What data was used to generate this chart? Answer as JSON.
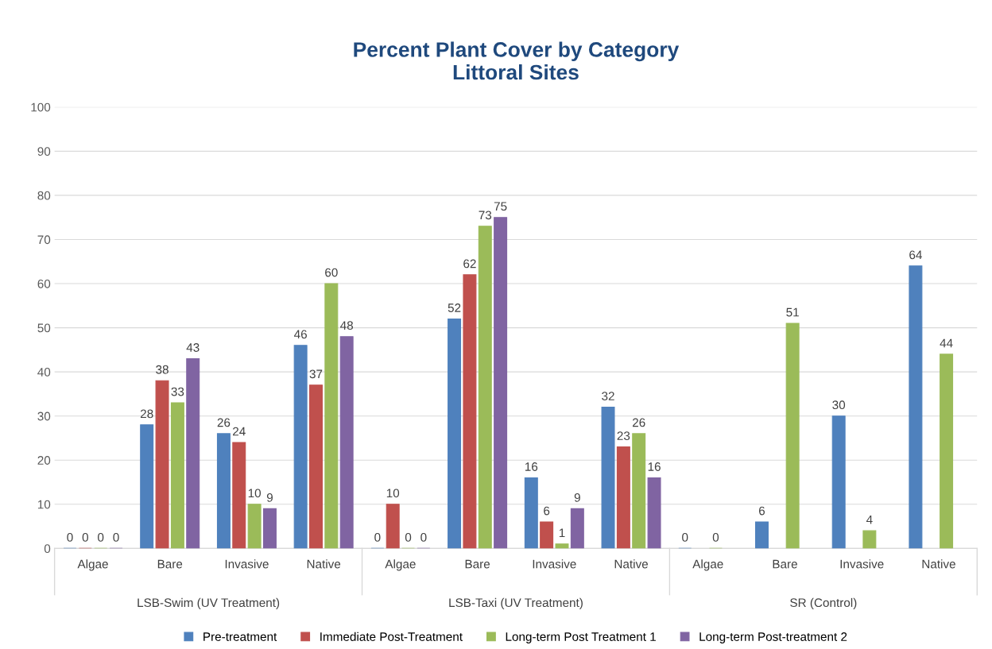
{
  "chart_data": {
    "type": "bar",
    "title": "Percent Plant Cover by Category\nLittoral Sites",
    "categories": [
      "Algae",
      "Bare",
      "Invasive",
      "Native",
      "Algae",
      "Bare",
      "Invasive",
      "Native",
      "Algae",
      "Bare",
      "Invasive",
      "Native"
    ],
    "series": [
      {
        "name": "Pre-treatment",
        "color": "#4f81bd",
        "values": [
          0,
          28,
          26,
          46,
          0,
          52,
          16,
          32,
          0,
          6,
          30,
          64
        ]
      },
      {
        "name": "Immediate Post-Treatment",
        "color": "#c0504d",
        "values": [
          0,
          38,
          24,
          37,
          10,
          62,
          6,
          23,
          null,
          null,
          null,
          null
        ]
      },
      {
        "name": "Long-term Post Treatment 1",
        "color": "#9bbb59",
        "values": [
          0,
          33,
          10,
          60,
          0,
          73,
          1,
          26,
          0,
          51,
          4,
          44
        ]
      },
      {
        "name": "Long-term Post-treatment 2",
        "color": "#8064a2",
        "values": [
          0,
          43,
          9,
          48,
          0,
          75,
          9,
          16,
          null,
          null,
          null,
          null
        ]
      }
    ],
    "annotations": [
      "LSB-Swim (UV Treatment)",
      "LSB-Taxi (UV Treatment)",
      "SR (Control)"
    ],
    "ylim": [
      0,
      100
    ],
    "yticks": [
      0,
      10,
      20,
      30,
      40,
      50,
      60,
      70,
      80,
      90,
      100
    ],
    "grid": "y",
    "legend": "bottom",
    "data_labels": true
  }
}
